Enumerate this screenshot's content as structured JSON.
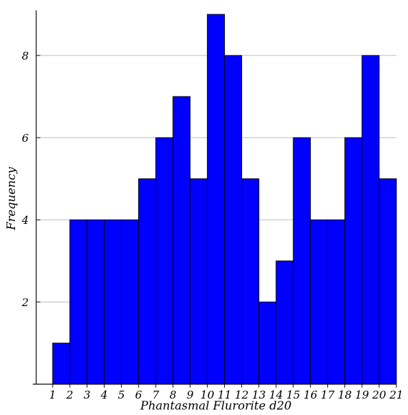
{
  "chart_data": {
    "type": "bar",
    "categories": [
      "1",
      "2",
      "3",
      "4",
      "5",
      "6",
      "7",
      "8",
      "9",
      "10",
      "11",
      "12",
      "13",
      "14",
      "15",
      "16",
      "17",
      "18",
      "19",
      "20"
    ],
    "values": [
      1,
      4,
      4,
      4,
      4,
      5,
      6,
      7,
      5,
      9,
      8,
      5,
      2,
      3,
      6,
      4,
      4,
      6,
      8,
      5
    ],
    "x_ticks": [
      "1",
      "2",
      "3",
      "4",
      "5",
      "6",
      "7",
      "8",
      "9",
      "10",
      "11",
      "12",
      "13",
      "14",
      "15",
      "16",
      "17",
      "18",
      "19",
      "20",
      "21"
    ],
    "y_ticks": [
      2,
      4,
      6,
      8
    ],
    "xlabel": "Phantasmal Flurorite d20",
    "ylabel": "Frequency",
    "xlim": [
      1,
      21
    ],
    "ylim": [
      0,
      9.3
    ],
    "grid": "horizontal",
    "legend": "none",
    "colors": {
      "bar_fill": "#0000ff",
      "bar_stroke": "#000000",
      "grid": "#bbbbbb",
      "axis": "#000000"
    }
  }
}
